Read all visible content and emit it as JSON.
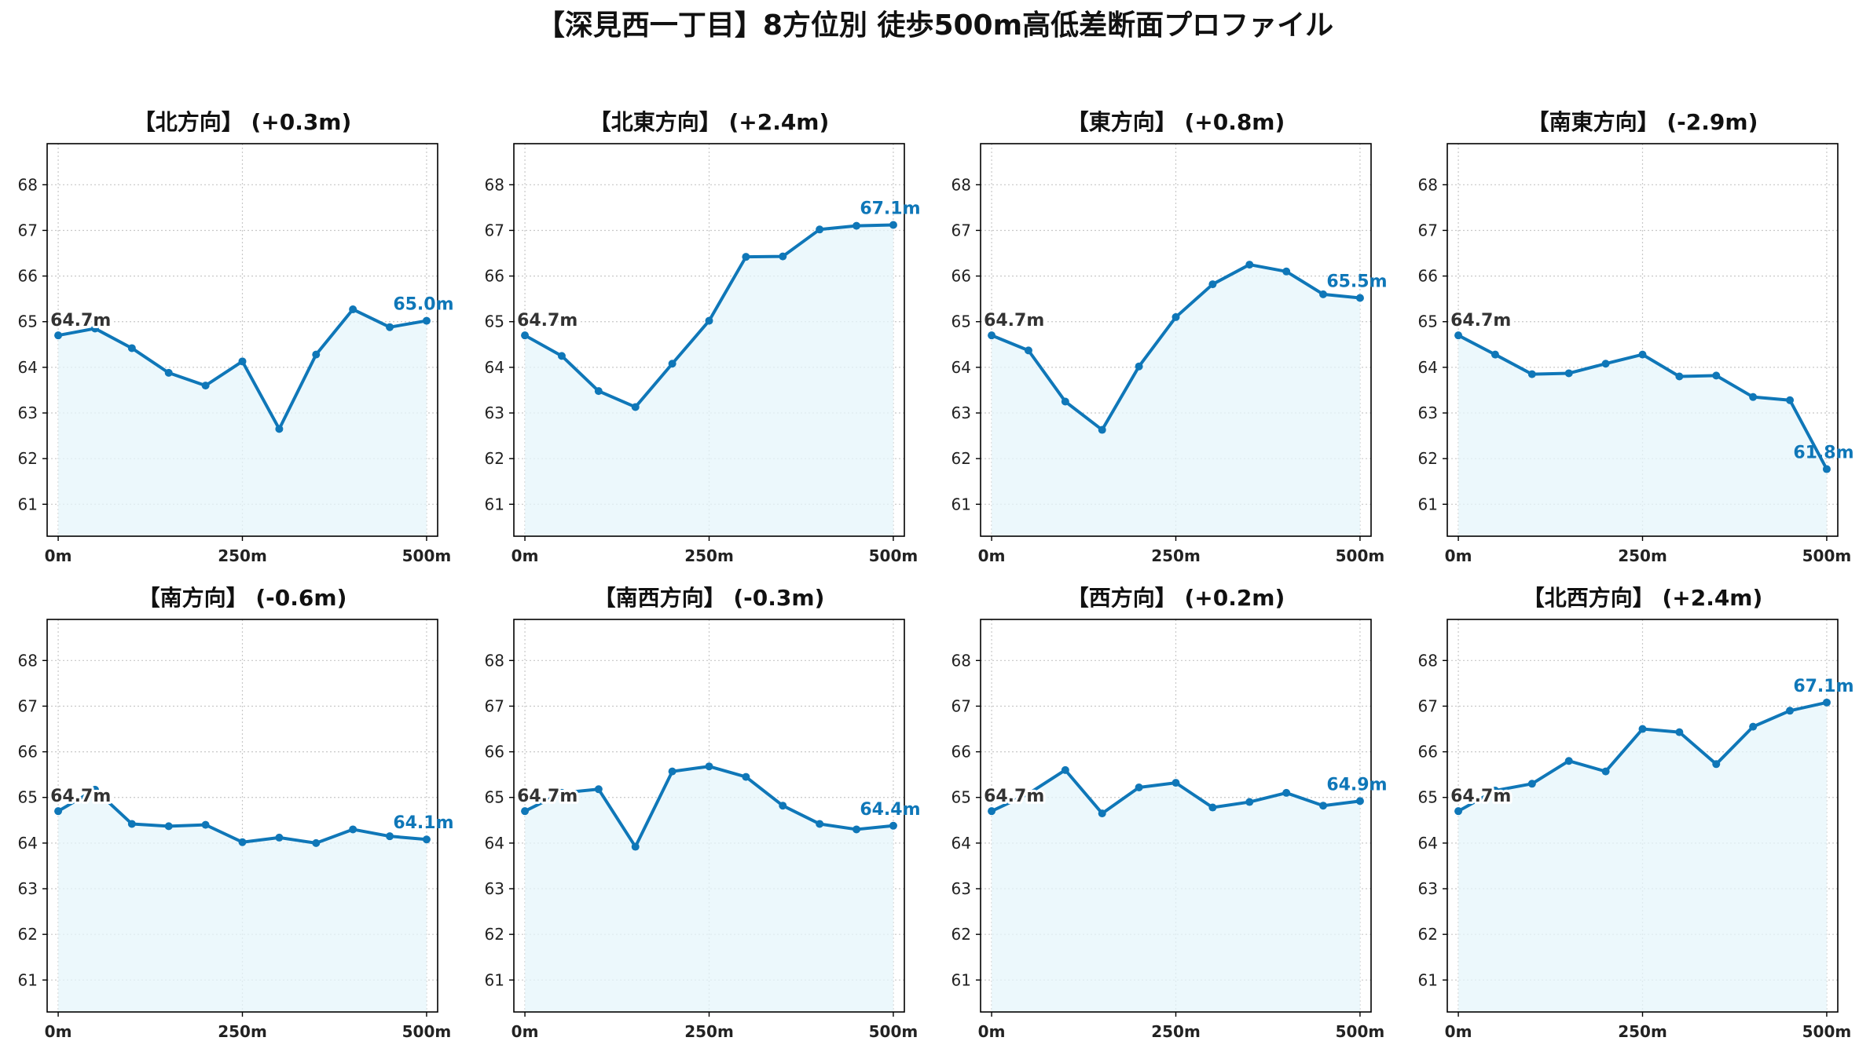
{
  "figure_title": "【深見西一丁目】8方位別 徒歩500m高低差断面プロファイル",
  "style": {
    "line_color": "#0f77b8",
    "fill_color": "#e6f6fb",
    "grid_color": "#c8c8c8"
  },
  "chart_data": [
    {
      "type": "line",
      "title": "【北方向】 (+0.3m)",
      "x": [
        0,
        50,
        100,
        150,
        200,
        250,
        300,
        350,
        400,
        450,
        500
      ],
      "y": [
        64.7,
        64.85,
        64.42,
        63.88,
        63.6,
        64.13,
        62.65,
        64.28,
        65.27,
        64.88,
        65.02
      ],
      "start_label": "64.7m",
      "end_label": "65.0m",
      "xticks": [
        "0m",
        "250m",
        "500m"
      ],
      "yticks": [
        61,
        62,
        63,
        64,
        65,
        66,
        67,
        68
      ],
      "xlim": [
        -15,
        515
      ],
      "ylim": [
        60.3,
        68.9
      ],
      "grid": true
    },
    {
      "type": "line",
      "title": "【北東方向】 (+2.4m)",
      "x": [
        0,
        50,
        100,
        150,
        200,
        250,
        300,
        350,
        400,
        450,
        500
      ],
      "y": [
        64.7,
        64.25,
        63.48,
        63.13,
        64.08,
        65.02,
        66.42,
        66.43,
        67.02,
        67.1,
        67.12
      ],
      "start_label": "64.7m",
      "end_label": "67.1m",
      "xticks": [
        "0m",
        "250m",
        "500m"
      ],
      "yticks": [
        61,
        62,
        63,
        64,
        65,
        66,
        67,
        68
      ],
      "xlim": [
        -15,
        515
      ],
      "ylim": [
        60.3,
        68.9
      ],
      "grid": true
    },
    {
      "type": "line",
      "title": "【東方向】 (+0.8m)",
      "x": [
        0,
        50,
        100,
        150,
        200,
        250,
        300,
        350,
        400,
        450,
        500
      ],
      "y": [
        64.7,
        64.37,
        63.25,
        62.63,
        64.02,
        65.1,
        65.82,
        66.25,
        66.1,
        65.6,
        65.52
      ],
      "start_label": "64.7m",
      "end_label": "65.5m",
      "xticks": [
        "0m",
        "250m",
        "500m"
      ],
      "yticks": [
        61,
        62,
        63,
        64,
        65,
        66,
        67,
        68
      ],
      "xlim": [
        -15,
        515
      ],
      "ylim": [
        60.3,
        68.9
      ],
      "grid": true
    },
    {
      "type": "line",
      "title": "【南東方向】 (-2.9m)",
      "x": [
        0,
        50,
        100,
        150,
        200,
        250,
        300,
        350,
        400,
        450,
        500
      ],
      "y": [
        64.7,
        64.28,
        63.85,
        63.87,
        64.08,
        64.28,
        63.8,
        63.82,
        63.35,
        63.28,
        61.77
      ],
      "start_label": "64.7m",
      "end_label": "61.8m",
      "xticks": [
        "0m",
        "250m",
        "500m"
      ],
      "yticks": [
        61,
        62,
        63,
        64,
        65,
        66,
        67,
        68
      ],
      "xlim": [
        -15,
        515
      ],
      "ylim": [
        60.3,
        68.9
      ],
      "grid": true
    },
    {
      "type": "line",
      "title": "【南方向】 (-0.6m)",
      "x": [
        0,
        50,
        100,
        150,
        200,
        250,
        300,
        350,
        400,
        450,
        500
      ],
      "y": [
        64.7,
        65.17,
        64.42,
        64.37,
        64.4,
        64.02,
        64.12,
        64.0,
        64.3,
        64.15,
        64.08
      ],
      "start_label": "64.7m",
      "end_label": "64.1m",
      "xticks": [
        "0m",
        "250m",
        "500m"
      ],
      "yticks": [
        61,
        62,
        63,
        64,
        65,
        66,
        67,
        68
      ],
      "xlim": [
        -15,
        515
      ],
      "ylim": [
        60.3,
        68.9
      ],
      "grid": true
    },
    {
      "type": "line",
      "title": "【南西方向】 (-0.3m)",
      "x": [
        0,
        50,
        100,
        150,
        200,
        250,
        300,
        350,
        400,
        450,
        500
      ],
      "y": [
        64.7,
        65.1,
        65.18,
        63.92,
        65.57,
        65.68,
        65.45,
        64.82,
        64.42,
        64.3,
        64.38
      ],
      "start_label": "64.7m",
      "end_label": "64.4m",
      "xticks": [
        "0m",
        "250m",
        "500m"
      ],
      "yticks": [
        61,
        62,
        63,
        64,
        65,
        66,
        67,
        68
      ],
      "xlim": [
        -15,
        515
      ],
      "ylim": [
        60.3,
        68.9
      ],
      "grid": true
    },
    {
      "type": "line",
      "title": "【西方向】 (+0.2m)",
      "x": [
        0,
        50,
        100,
        150,
        200,
        250,
        300,
        350,
        400,
        450,
        500
      ],
      "y": [
        64.7,
        65.08,
        65.6,
        64.65,
        65.22,
        65.32,
        64.78,
        64.9,
        65.1,
        64.82,
        64.92
      ],
      "start_label": "64.7m",
      "end_label": "64.9m",
      "xticks": [
        "0m",
        "250m",
        "500m"
      ],
      "yticks": [
        61,
        62,
        63,
        64,
        65,
        66,
        67,
        68
      ],
      "xlim": [
        -15,
        515
      ],
      "ylim": [
        60.3,
        68.9
      ],
      "grid": true
    },
    {
      "type": "line",
      "title": "【北西方向】 (+2.4m)",
      "x": [
        0,
        50,
        100,
        150,
        200,
        250,
        300,
        350,
        400,
        450,
        500
      ],
      "y": [
        64.7,
        65.15,
        65.3,
        65.8,
        65.57,
        66.5,
        66.43,
        65.73,
        66.55,
        66.9,
        67.08
      ],
      "start_label": "64.7m",
      "end_label": "67.1m",
      "xticks": [
        "0m",
        "250m",
        "500m"
      ],
      "yticks": [
        61,
        62,
        63,
        64,
        65,
        66,
        67,
        68
      ],
      "xlim": [
        -15,
        515
      ],
      "ylim": [
        60.3,
        68.9
      ],
      "grid": true
    }
  ]
}
